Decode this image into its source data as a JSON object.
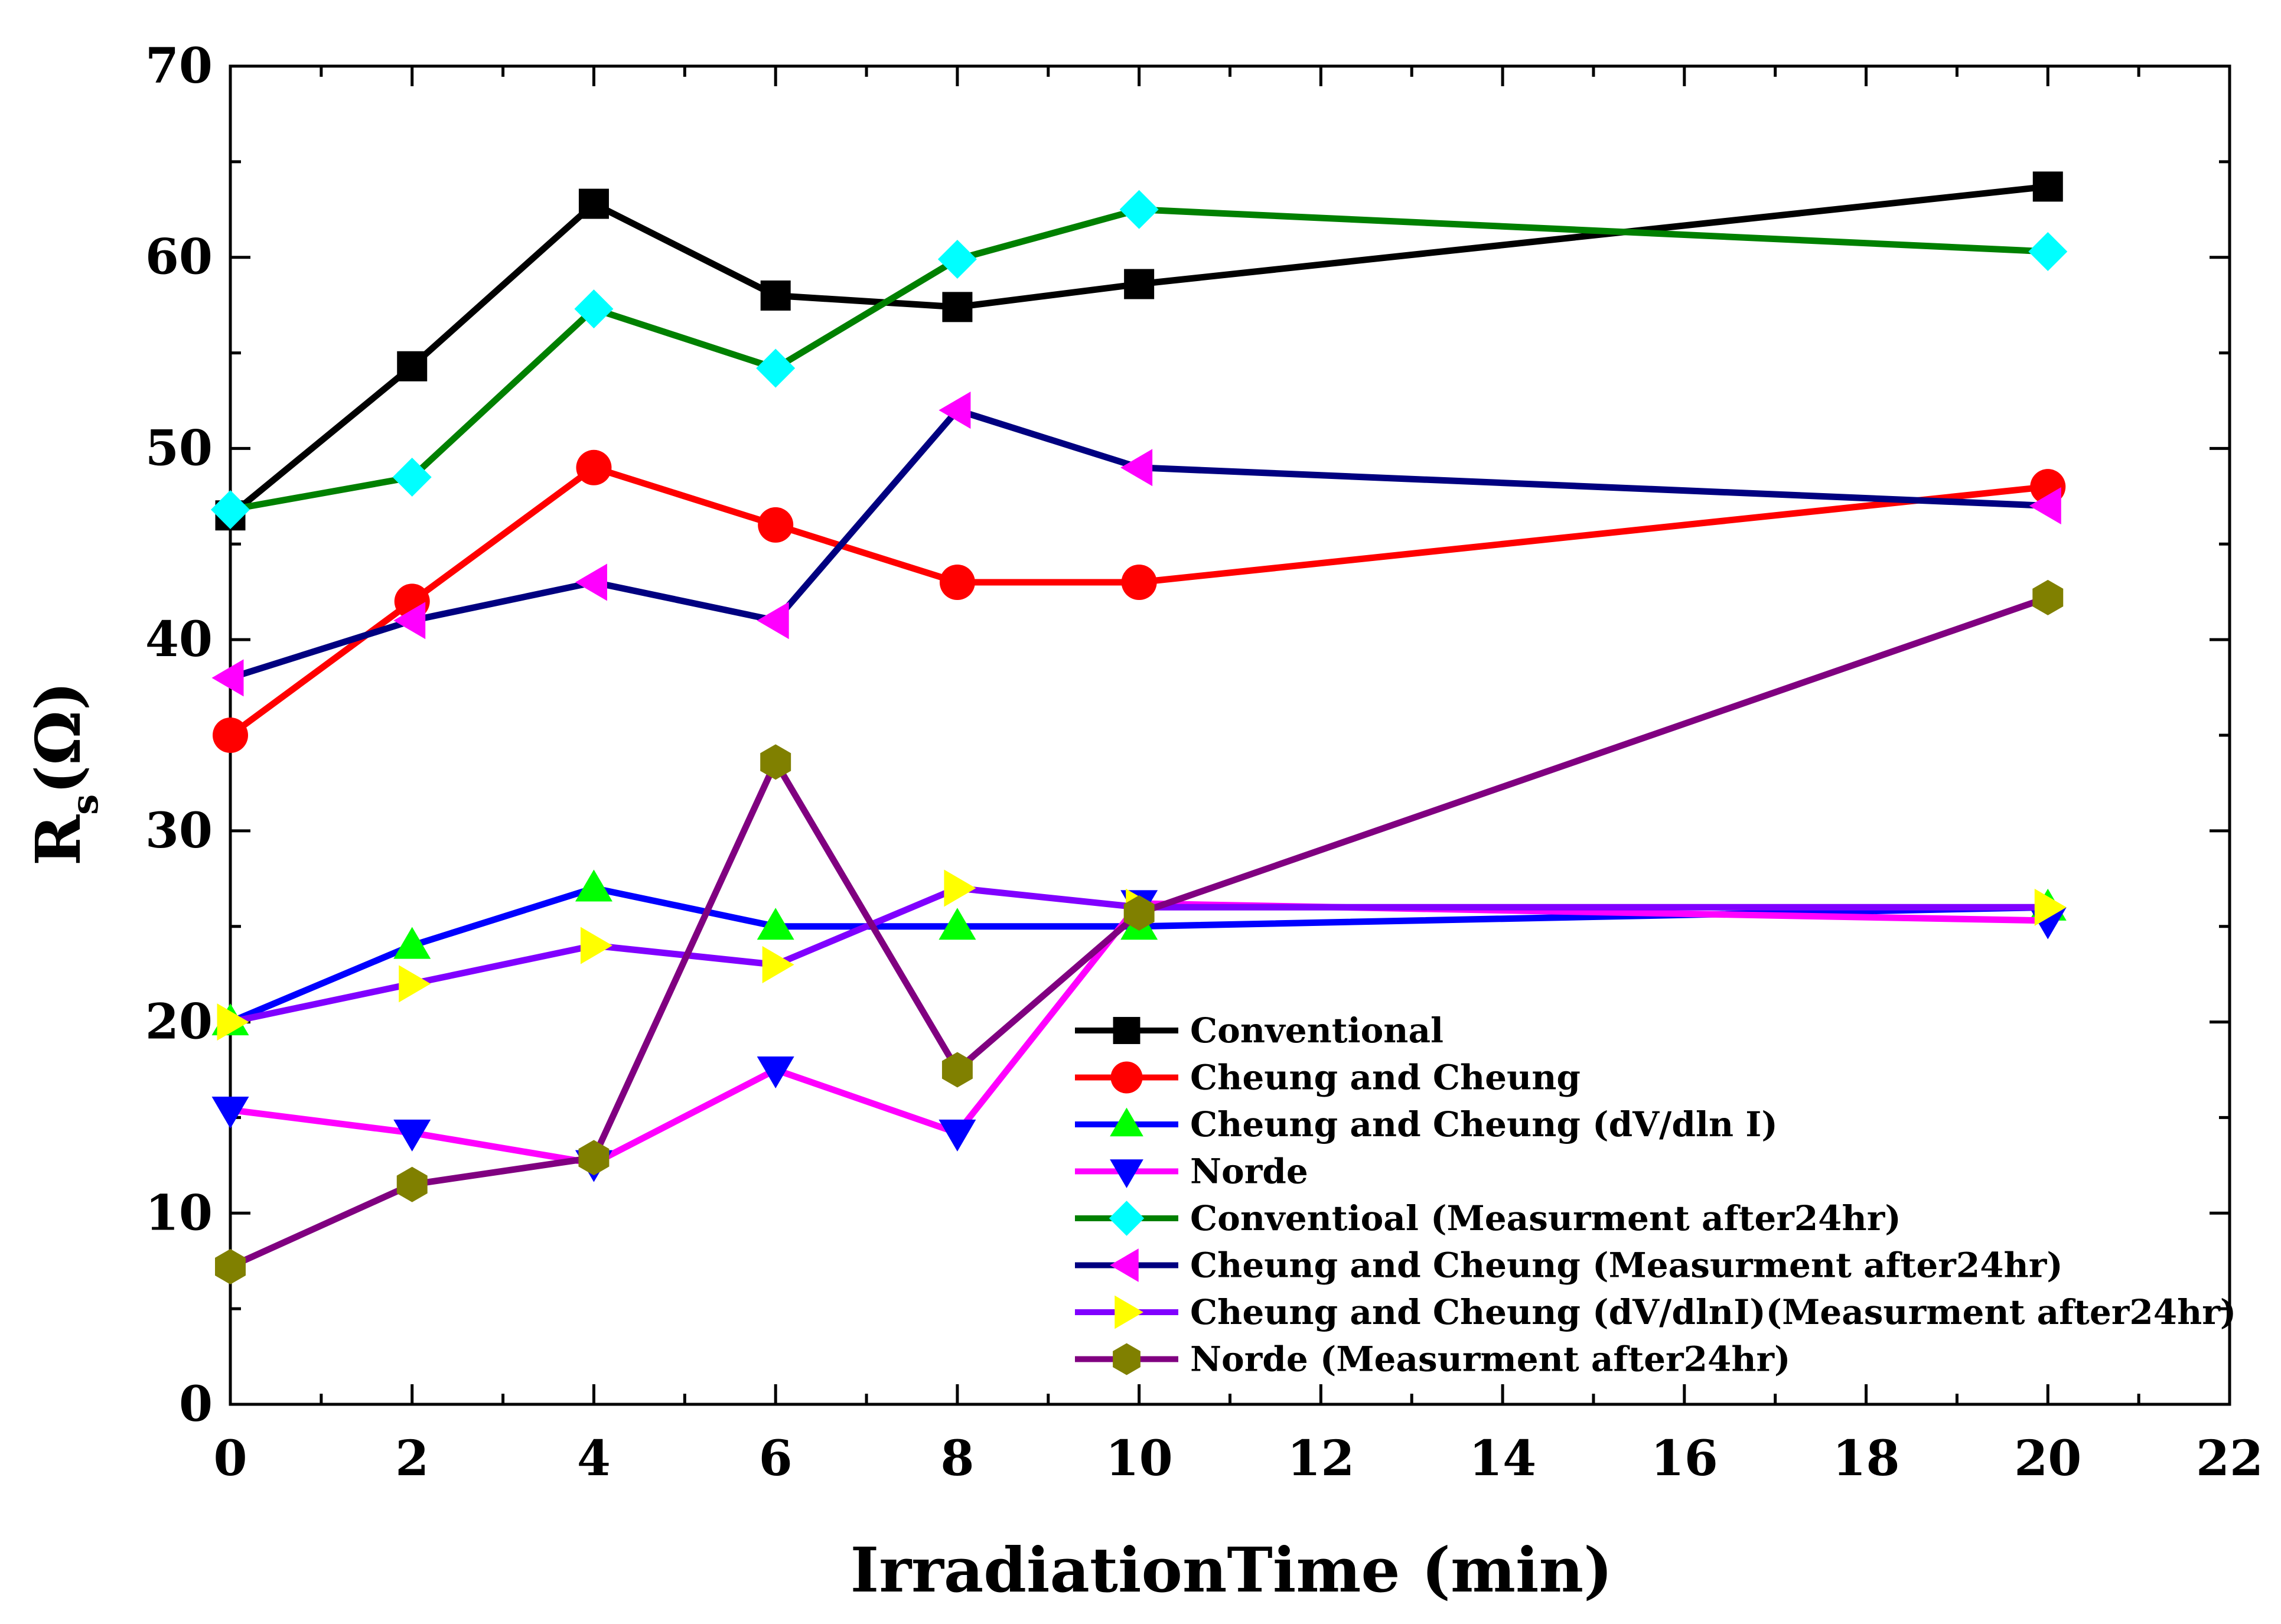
{
  "chart_data": {
    "type": "line",
    "title": "",
    "xlabel": "IrradiationTime (min)",
    "ylabel_main": "R",
    "ylabel_sub": "s",
    "ylabel_unit": "(Ω)",
    "xlim": [
      0,
      22
    ],
    "ylim": [
      0,
      70
    ],
    "x_ticks": [
      0,
      2,
      4,
      6,
      8,
      10,
      12,
      14,
      16,
      18,
      20,
      22
    ],
    "y_ticks": [
      0,
      10,
      20,
      30,
      40,
      50,
      60,
      70
    ],
    "x_tick_labels": [
      "0",
      "2",
      "4",
      "6",
      "8",
      "10",
      "12",
      "14",
      "16",
      "18",
      "20",
      "22"
    ],
    "y_tick_labels": [
      "0",
      "10",
      "20",
      "30",
      "40",
      "50",
      "60",
      "70"
    ],
    "grid": false,
    "legend_position": "bottom-right",
    "x": [
      0,
      2,
      4,
      6,
      8,
      10,
      20
    ],
    "series": [
      {
        "name": "Conventional",
        "line_color": "#000000",
        "marker": "square",
        "marker_color": "#000000",
        "values": [
          46.5,
          54.3,
          62.8,
          58.0,
          57.4,
          58.6,
          63.7
        ]
      },
      {
        "name": "Cheung and Cheung",
        "line_color": "#ff0000",
        "marker": "circle",
        "marker_color": "#ff0000",
        "values": [
          35.0,
          42.0,
          49.0,
          46.0,
          43.0,
          43.0,
          48.0
        ]
      },
      {
        "name": "Cheung and Cheung (dV/dln I)",
        "line_color": "#0000ff",
        "marker": "triangle-up",
        "marker_color": "#00ff00",
        "values": [
          20.0,
          24.0,
          27.0,
          25.0,
          25.0,
          25.0,
          26.0
        ]
      },
      {
        "name": "Norde",
        "line_color": "#ff00ff",
        "marker": "triangle-down",
        "marker_color": "#0000ff",
        "values": [
          15.4,
          14.2,
          12.6,
          17.5,
          14.2,
          26.2,
          25.3
        ]
      },
      {
        "name": "Conventioal (Measurment after24hr)",
        "line_color": "#008000",
        "marker": "diamond",
        "marker_color": "#00ffff",
        "values": [
          46.8,
          48.5,
          57.3,
          54.2,
          59.9,
          62.5,
          60.3
        ]
      },
      {
        "name": "Cheung and Cheung (Measurment after24hr)",
        "line_color": "#000080",
        "marker": "triangle-left",
        "marker_color": "#ff00ff",
        "values": [
          38.0,
          41.0,
          43.0,
          41.0,
          52.0,
          49.0,
          47.0
        ]
      },
      {
        "name": "Cheung and Cheung (dV/dlnI)(Measurment after24hr)",
        "line_color": "#8000ff",
        "marker": "triangle-right",
        "marker_color": "#ffff00",
        "values": [
          20.0,
          22.0,
          24.0,
          23.0,
          27.0,
          26.0,
          26.0
        ]
      },
      {
        "name": "Norde (Measurment after24hr)",
        "line_color": "#800080",
        "marker": "hexagon",
        "marker_color": "#808000",
        "values": [
          7.2,
          11.5,
          12.9,
          33.6,
          17.5,
          25.7,
          42.2
        ]
      }
    ]
  }
}
